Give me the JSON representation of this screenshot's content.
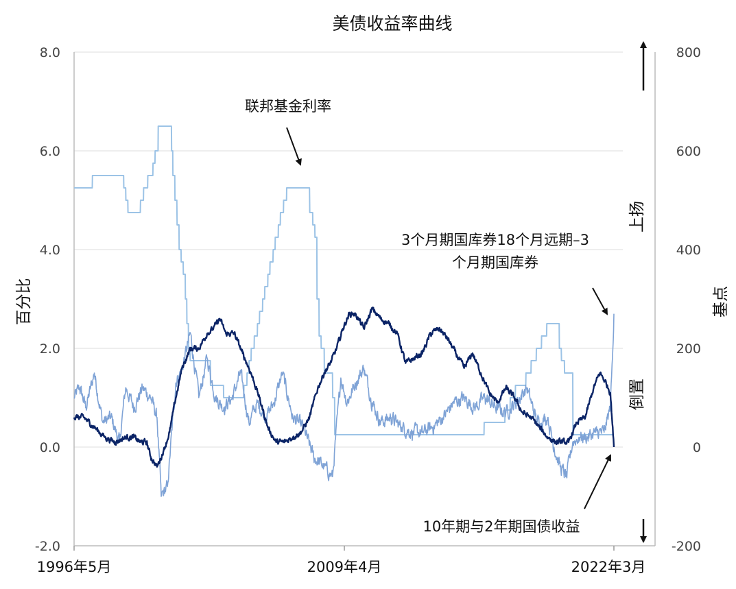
{
  "chart_data": {
    "type": "line",
    "title": "美债收益率曲线",
    "ylabel_left": "百分比",
    "ylabel_right": "基点",
    "right_axis_notes": {
      "up": "上扬",
      "down": "倒置"
    },
    "x_ticks": [
      "1996年5月",
      "2009年4月",
      "2022年3月"
    ],
    "x_range": [
      1996.33,
      2022.17
    ],
    "y_left_ticks": [
      "8.0",
      "6.0",
      "4.0",
      "2.0",
      "0.0",
      "-2.0"
    ],
    "ylim_left": [
      -2.0,
      8.0
    ],
    "y_right_ticks": [
      "800",
      "600",
      "400",
      "200",
      "0",
      "-200"
    ],
    "ylim_right": [
      -200,
      800
    ],
    "grid": true,
    "annotations": [
      {
        "text": "联邦基金利率"
      },
      {
        "text": "3个月期国库券18个月远期–3 个月期国库券",
        "lines": [
          "3个月期国库券18个月远期–3",
          "个月期国库券"
        ]
      },
      {
        "text": "10年期与2年期国债收益"
      }
    ],
    "series": [
      {
        "name": "联邦基金利率",
        "axis": "left",
        "color": "#9cc3e6",
        "x": [
          1996.33,
          1997.2,
          1997.21,
          1998.7,
          1998.71,
          1998.8,
          1998.81,
          1998.9,
          1998.91,
          1999.5,
          1999.51,
          1999.65,
          1999.66,
          1999.85,
          1999.86,
          2000.1,
          2000.11,
          2000.2,
          2000.21,
          2000.35,
          2000.36,
          2000.99,
          2001.0,
          2001.05,
          2001.06,
          2001.15,
          2001.16,
          2001.25,
          2001.26,
          2001.35,
          2001.36,
          2001.45,
          2001.46,
          2001.55,
          2001.56,
          2001.65,
          2001.66,
          2001.72,
          2001.73,
          2001.8,
          2001.81,
          2001.88,
          2001.89,
          2001.95,
          2001.96,
          2002.85,
          2002.86,
          2003.48,
          2003.49,
          2004.45,
          2004.46,
          2004.6,
          2004.61,
          2004.7,
          2004.71,
          2004.8,
          2004.81,
          2004.95,
          2004.96,
          2005.1,
          2005.11,
          2005.2,
          2005.21,
          2005.35,
          2005.36,
          2005.45,
          2005.46,
          2005.6,
          2005.61,
          2005.7,
          2005.71,
          2005.85,
          2005.86,
          2005.95,
          2005.96,
          2006.1,
          2006.11,
          2006.2,
          2006.21,
          2006.35,
          2006.36,
          2006.5,
          2006.51,
          2007.6,
          2007.61,
          2007.75,
          2007.76,
          2007.85,
          2007.86,
          2007.95,
          2007.96,
          2008.05,
          2008.06,
          2008.15,
          2008.16,
          2008.3,
          2008.31,
          2008.7,
          2008.71,
          2008.8,
          2008.81,
          2008.95,
          2008.96,
          2015.95,
          2015.96,
          2016.95,
          2016.96,
          2017.2,
          2017.21,
          2017.45,
          2017.46,
          2017.95,
          2017.96,
          2018.2,
          2018.21,
          2018.45,
          2018.46,
          2018.7,
          2018.71,
          2018.95,
          2018.96,
          2019.55,
          2019.56,
          2019.65,
          2019.66,
          2019.8,
          2019.81,
          2020.2,
          2020.21,
          2022.1
        ],
        "values": [
          5.25,
          5.25,
          5.5,
          5.5,
          5.25,
          5.25,
          5.0,
          5.0,
          4.75,
          4.75,
          5.0,
          5.0,
          5.25,
          5.25,
          5.5,
          5.5,
          5.75,
          5.75,
          6.0,
          6.0,
          6.5,
          6.5,
          6.0,
          6.0,
          5.5,
          5.5,
          5.0,
          5.0,
          4.5,
          4.5,
          4.0,
          4.0,
          3.75,
          3.75,
          3.5,
          3.5,
          3.0,
          3.0,
          2.5,
          2.5,
          2.0,
          2.0,
          1.75,
          1.75,
          1.75,
          1.75,
          1.25,
          1.25,
          1.0,
          1.0,
          1.25,
          1.25,
          1.5,
          1.5,
          1.75,
          1.75,
          2.0,
          2.0,
          2.25,
          2.25,
          2.5,
          2.5,
          2.75,
          2.75,
          3.0,
          3.0,
          3.25,
          3.25,
          3.5,
          3.5,
          3.75,
          3.75,
          4.0,
          4.0,
          4.25,
          4.25,
          4.5,
          4.5,
          4.75,
          4.75,
          5.0,
          5.0,
          5.25,
          5.25,
          4.75,
          4.75,
          4.5,
          4.5,
          4.25,
          4.25,
          3.0,
          3.0,
          2.25,
          2.25,
          2.0,
          2.0,
          1.5,
          1.5,
          1.0,
          1.0,
          0.25,
          0.25,
          0.25,
          0.25,
          0.5,
          0.5,
          0.75,
          0.75,
          1.0,
          1.0,
          1.25,
          1.25,
          1.5,
          1.5,
          1.75,
          1.75,
          2.0,
          2.0,
          2.25,
          2.25,
          2.5,
          2.5,
          2.0,
          2.0,
          1.75,
          1.75,
          1.5,
          1.5,
          0.25,
          0.25
        ]
      },
      {
        "name": "3个月期国库券18个月远期–3个月期国库券",
        "axis": "left",
        "color": "#7fa3d6",
        "x": [
          1996.33,
          1996.6,
          1996.9,
          1997.3,
          1997.7,
          1998.1,
          1998.5,
          1998.8,
          1999.2,
          1999.6,
          2000.0,
          2000.3,
          2000.5,
          2000.8,
          2001.2,
          2001.5,
          2001.9,
          2002.3,
          2002.7,
          2003.1,
          2003.5,
          2003.9,
          2004.3,
          2004.7,
          2005.1,
          2005.5,
          2005.9,
          2006.3,
          2006.8,
          2007.3,
          2007.8,
          2008.3,
          2008.7,
          2009.1,
          2009.4,
          2009.8,
          2010.2,
          2010.6,
          2011.0,
          2011.5,
          2012.0,
          2012.5,
          2013.0,
          2013.5,
          2014.0,
          2014.5,
          2015.0,
          2015.5,
          2016.0,
          2016.5,
          2017.0,
          2017.5,
          2018.0,
          2018.5,
          2019.0,
          2019.3,
          2019.6,
          2019.9,
          2020.2,
          2020.5,
          2020.9,
          2021.3,
          2021.7,
          2022.0,
          2022.1,
          2022.17
        ],
        "values": [
          1.0,
          1.2,
          0.8,
          1.5,
          0.5,
          0.6,
          0.1,
          1.2,
          0.8,
          1.2,
          1.0,
          0.6,
          -1.0,
          -0.8,
          1.3,
          1.6,
          2.3,
          1.0,
          1.8,
          1.0,
          0.8,
          1.0,
          1.5,
          0.5,
          0.9,
          0.6,
          0.9,
          1.5,
          0.6,
          0.4,
          -0.2,
          -0.4,
          -0.6,
          1.4,
          0.9,
          1.3,
          1.6,
          0.9,
          0.5,
          0.6,
          0.4,
          0.3,
          0.3,
          0.4,
          0.6,
          0.9,
          1.0,
          0.8,
          1.0,
          0.8,
          0.7,
          0.9,
          1.2,
          0.5,
          0.6,
          0.0,
          -0.4,
          -0.6,
          0.1,
          0.2,
          0.2,
          0.3,
          0.3,
          0.8,
          1.8,
          2.7
        ]
      },
      {
        "name": "10年期与2年期国债收益",
        "axis": "left",
        "color": "#0b2466",
        "x": [
          1996.33,
          1996.8,
          1997.3,
          1997.8,
          1998.3,
          1998.8,
          1999.2,
          1999.5,
          1999.8,
          2000.0,
          2000.3,
          2000.6,
          2000.9,
          2001.2,
          2001.5,
          2001.9,
          2002.3,
          2002.7,
          2003.0,
          2003.3,
          2003.6,
          2004.0,
          2004.4,
          2004.8,
          2005.2,
          2005.6,
          2006.0,
          2006.4,
          2006.8,
          2007.2,
          2007.6,
          2008.0,
          2008.3,
          2008.6,
          2008.9,
          2009.2,
          2009.5,
          2009.8,
          2010.2,
          2010.6,
          2011.0,
          2011.4,
          2011.8,
          2012.2,
          2012.6,
          2013.0,
          2013.4,
          2013.8,
          2014.2,
          2014.6,
          2015.0,
          2015.4,
          2015.8,
          2016.2,
          2016.6,
          2017.0,
          2017.4,
          2017.8,
          2018.2,
          2018.6,
          2019.0,
          2019.4,
          2019.7,
          2020.0,
          2020.4,
          2020.8,
          2021.2,
          2021.5,
          2021.8,
          2022.0,
          2022.17
        ],
        "values": [
          0.6,
          0.6,
          0.4,
          0.2,
          0.1,
          0.2,
          0.2,
          0.1,
          0.1,
          -0.2,
          -0.4,
          -0.1,
          0.3,
          1.0,
          1.6,
          2.0,
          2.0,
          2.3,
          2.4,
          2.6,
          2.3,
          2.3,
          1.9,
          1.5,
          1.0,
          0.4,
          0.1,
          0.1,
          0.2,
          0.3,
          0.6,
          1.2,
          1.5,
          1.7,
          2.0,
          2.4,
          2.7,
          2.7,
          2.4,
          2.8,
          2.6,
          2.5,
          2.3,
          1.7,
          1.8,
          1.9,
          2.3,
          2.4,
          2.2,
          1.9,
          1.6,
          1.9,
          1.5,
          1.1,
          0.9,
          1.2,
          1.0,
          0.7,
          0.6,
          0.4,
          0.2,
          0.1,
          0.1,
          0.1,
          0.5,
          0.6,
          1.2,
          1.5,
          1.3,
          1.1,
          0.0
        ]
      }
    ]
  }
}
